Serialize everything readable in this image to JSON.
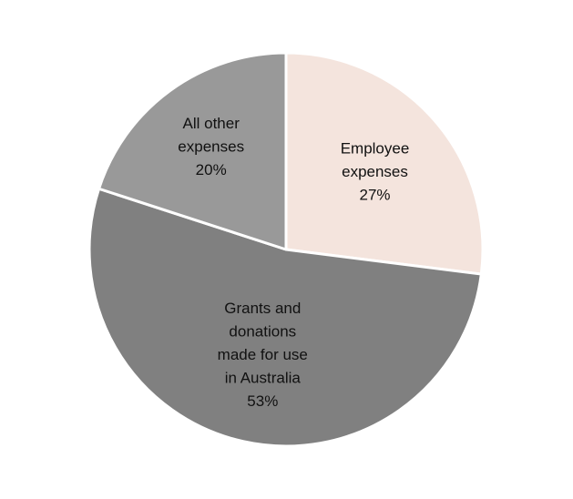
{
  "chart_data": {
    "type": "pie",
    "title": "",
    "start_angle_deg": 0,
    "direction": "clockwise",
    "slices": [
      {
        "name": "Employee expenses",
        "label_lines": [
          "Employee",
          "expenses",
          "27%"
        ],
        "value": 27,
        "color": "#f4e4dd"
      },
      {
        "name": "Grants and donations made for use in Australia",
        "label_lines": [
          "Grants and",
          "donations",
          "made for use",
          "in Australia",
          "53%"
        ],
        "value": 53,
        "color": "#808080"
      },
      {
        "name": "All other expenses",
        "label_lines": [
          "All other",
          "expenses",
          "20%"
        ],
        "value": 20,
        "color": "#999999"
      }
    ],
    "legend": "none"
  }
}
